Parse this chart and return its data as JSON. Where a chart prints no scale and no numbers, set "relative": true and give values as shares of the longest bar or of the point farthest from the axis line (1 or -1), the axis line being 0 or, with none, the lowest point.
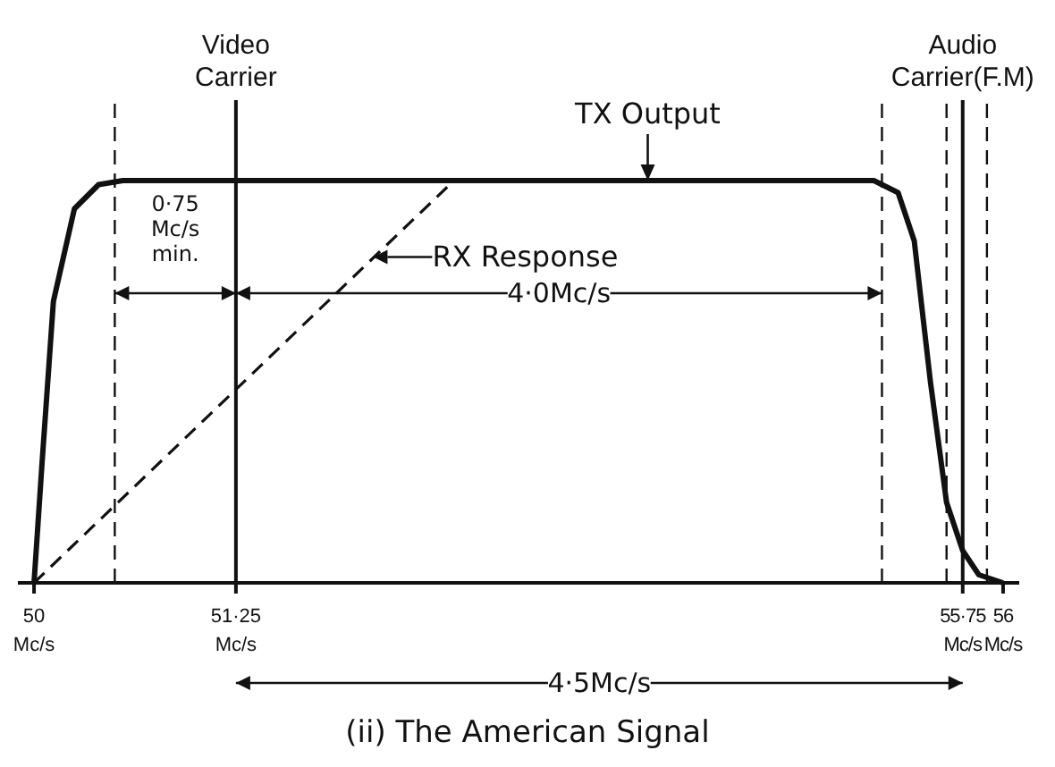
{
  "chart_data": {
    "type": "line",
    "title": "(ii) The American Signal",
    "relative": true,
    "grid": false,
    "legend": false,
    "marker": "none",
    "xlim": [
      49.9,
      56.1
    ],
    "xticks": [
      {
        "value": 50,
        "label": "50 Mc/s"
      },
      {
        "value": 51.25,
        "label": "51·25 Mc/s"
      },
      {
        "value": 55.75,
        "label": "55·75 Mc/s"
      },
      {
        "value": 56,
        "label": "56 Mc/s"
      }
    ],
    "series": [
      {
        "color": "#111111",
        "line_style": "solid",
        "x": [
          50,
          50.05,
          50.12,
          50.25,
          50.4,
          50.55,
          55.2,
          55.35,
          55.45,
          55.55,
          55.65,
          55.75,
          55.85,
          56
        ],
        "values": [
          0,
          0.3,
          0.7,
          0.93,
          0.99,
          1,
          1,
          0.97,
          0.85,
          0.5,
          0.2,
          0.08,
          0.02,
          0
        ]
      },
      {
        "color": "#111111",
        "line_style": "dashed",
        "x": [
          50,
          52.6
        ],
        "values": [
          0,
          1
        ]
      }
    ],
    "ref_lines": [
      {
        "axis": "x",
        "value": 50.5,
        "line_style": "dashed"
      },
      {
        "axis": "x",
        "value": 51.25,
        "label": "Video Carrier",
        "line_style": "solid"
      },
      {
        "axis": "x",
        "value": 55.25,
        "line_style": "dashed"
      },
      {
        "axis": "x",
        "value": 55.65,
        "line_style": "dashed"
      },
      {
        "axis": "x",
        "value": 55.75,
        "label": "Audio Carrier(F.M)",
        "line_style": "solid"
      },
      {
        "axis": "x",
        "value": 55.9,
        "line_style": "dashed"
      }
    ],
    "annotations": [
      {
        "text": "TX Output",
        "x": 53.8,
        "y": 1
      },
      {
        "text": "RX Response",
        "x": 52.1,
        "y": 0.81
      },
      "0·75 Mc/s min.",
      "4·0Mc/s",
      "4·5Mc/s"
    ]
  }
}
